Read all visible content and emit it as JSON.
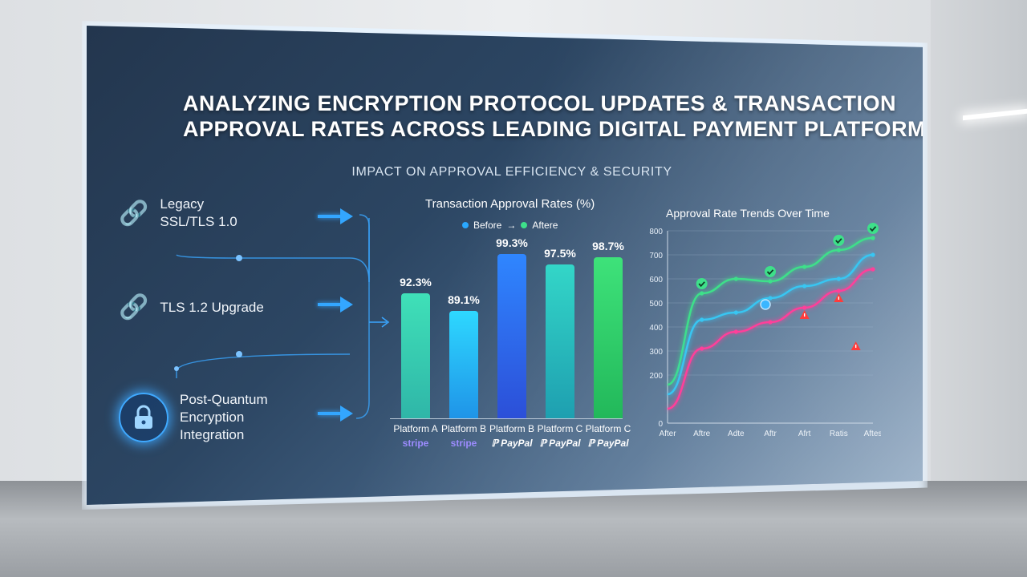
{
  "title_lines": [
    "ANALYZING ENCRYPTION PROTOCOL UPDATES & TRANSACTION",
    "APPROVAL RATES ACROSS LEADING DIGITAL PAYMENT PLATFORMS"
  ],
  "subtitle": "IMPACT ON APPROVAL EFFICIENCY & SECURITY",
  "stages": [
    {
      "label": "Legacy\nSSL/TLS 1.0",
      "icon": "chain-link-icon"
    },
    {
      "label": "TLS 1.2 Upgrade",
      "icon": "chain-link-icon"
    },
    {
      "label": "Post-Quantum\nEncryption\nIntegration",
      "icon": "padlock-icon"
    }
  ],
  "colors": {
    "accent": "#33a6ff",
    "green": "#3ee08a",
    "cyan": "#38c6f2",
    "pink": "#ff3f9a",
    "alert": "#ff3b3b"
  },
  "chart_data": [
    {
      "type": "bar",
      "title": "Transaction Approval Rates (%)",
      "legend": [
        {
          "label": "Before",
          "color": "#2aa8ff"
        },
        {
          "label": "→",
          "color": ""
        },
        {
          "label": "Aftere",
          "color": "#3ee08a"
        }
      ],
      "categories": [
        "Platform A",
        "Platform B",
        "Platform B",
        "Platform C",
        "Platform C"
      ],
      "brands": [
        "stripe",
        "stripe",
        "PayPal",
        "PayPal",
        "PayPal"
      ],
      "values": [
        92.3,
        89.1,
        99.3,
        97.5,
        98.7
      ],
      "value_labels": [
        "92.3%",
        "89.1%",
        "99.3%",
        "97.5%",
        "98.7%"
      ],
      "bar_colors": [
        [
          "#3fe0b8",
          "#2fb6a8"
        ],
        [
          "#2ed8ff",
          "#1f94e8"
        ],
        [
          "#2f86ff",
          "#2c4fd8"
        ],
        [
          "#33d6c8",
          "#1e9fb0"
        ],
        [
          "#3ee27a",
          "#22b85a"
        ]
      ]
    },
    {
      "type": "line",
      "title": "Approval Rate Trends Over Time",
      "x": [
        "After",
        "Aftre",
        "Adte",
        "Aftr",
        "Afrt",
        "Ratis",
        "Aftes"
      ],
      "ylim": [
        0,
        800
      ],
      "yticks": [
        0,
        200,
        300,
        400,
        500,
        600,
        700,
        800
      ],
      "grid": true,
      "series": [
        {
          "color": "#3ee08a",
          "values": [
            160,
            540,
            600,
            590,
            650,
            720,
            770
          ]
        },
        {
          "color": "#38c6f2",
          "values": [
            120,
            430,
            460,
            520,
            570,
            600,
            700
          ]
        },
        {
          "color": "#ff3f9a",
          "values": [
            60,
            310,
            380,
            420,
            480,
            550,
            640
          ]
        }
      ]
    }
  ]
}
